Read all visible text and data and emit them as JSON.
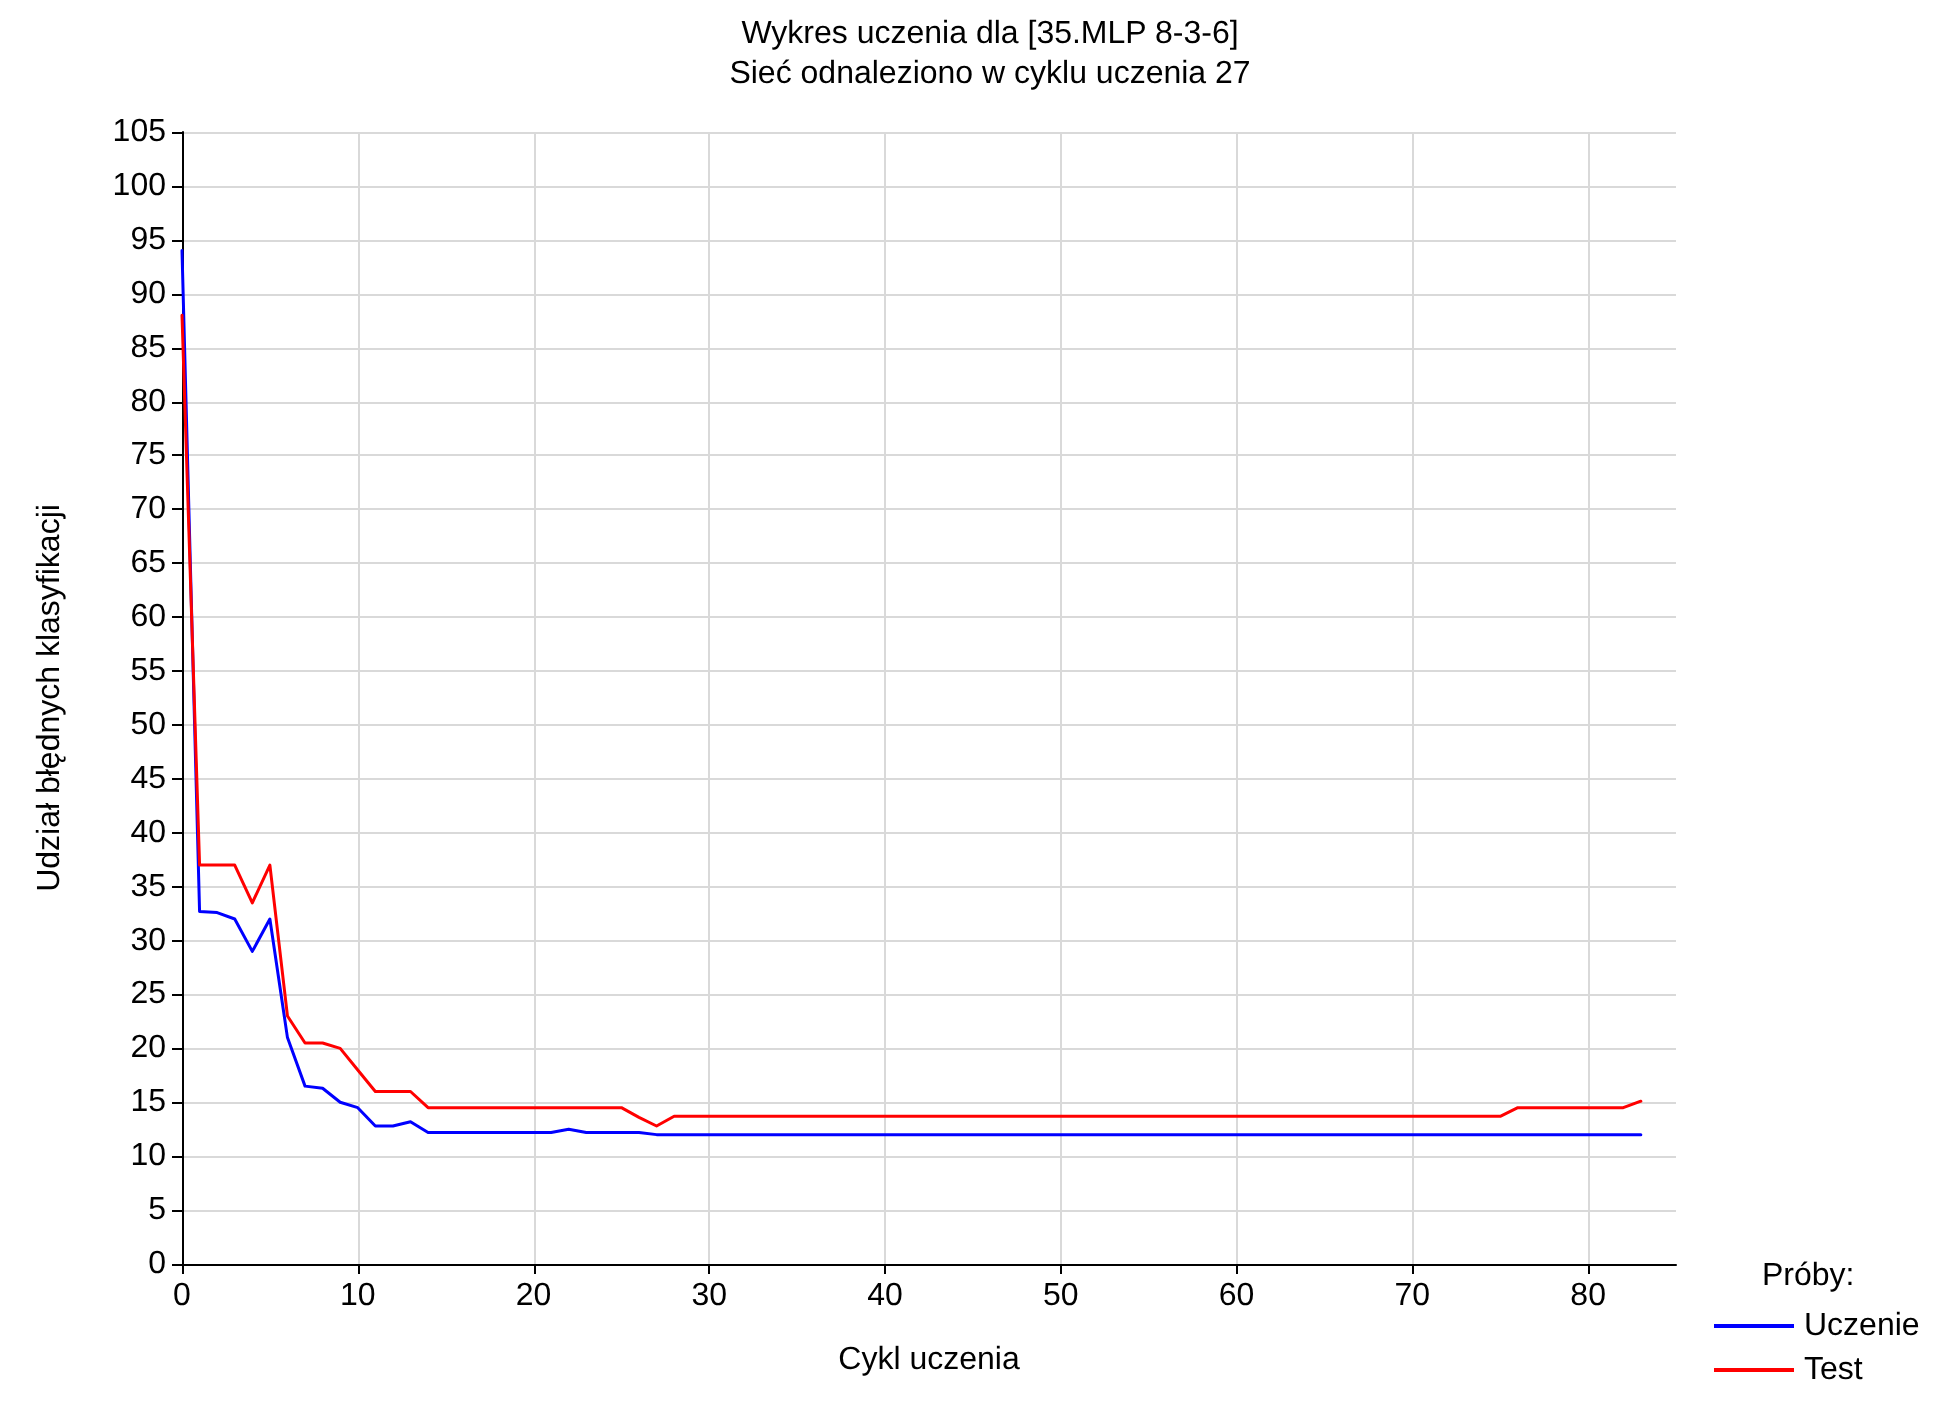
{
  "chart_data": {
    "type": "line",
    "title": "Wykres uczenia dla [35.MLP 8-3-6]",
    "subtitle": "Sieć odnaleziono w cyklu uczenia 27",
    "xlabel": "Cykl uczenia",
    "ylabel": "Udział błędnych klasyfikacji",
    "legend_title": "Próby:",
    "series": [
      {
        "name": "Uczenie",
        "color": "#0000ff",
        "x": [
          0,
          1,
          2,
          3,
          4,
          5,
          6,
          7,
          8,
          9,
          10,
          11,
          12,
          13,
          14,
          21,
          22,
          23,
          26,
          27,
          83
        ],
        "values": [
          94,
          32.7,
          32.6,
          32,
          29,
          32,
          21,
          16.5,
          16.3,
          15,
          14.5,
          12.8,
          12.8,
          13.2,
          12.2,
          12.2,
          12.5,
          12.2,
          12.2,
          12,
          12
        ]
      },
      {
        "name": "Test",
        "color": "#ff0000",
        "x": [
          0,
          1,
          3,
          4,
          5,
          6,
          7,
          8,
          9,
          10,
          11,
          13,
          14,
          25,
          26,
          27,
          28,
          75,
          76,
          82,
          83
        ],
        "values": [
          88,
          37,
          37,
          33.5,
          37,
          23,
          20.5,
          20.5,
          20,
          18,
          16,
          16,
          14.5,
          14.5,
          13.6,
          12.8,
          13.7,
          13.7,
          14.5,
          14.5,
          15.1
        ]
      }
    ],
    "xlim": [
      0,
      85
    ],
    "xticks": [
      0,
      10,
      20,
      30,
      40,
      50,
      60,
      70,
      80
    ],
    "ylim": [
      0,
      105
    ],
    "yticks": [
      0,
      5,
      10,
      15,
      20,
      25,
      30,
      35,
      40,
      45,
      50,
      55,
      60,
      65,
      70,
      75,
      80,
      85,
      90,
      95,
      100,
      105
    ],
    "grid": true,
    "legend": "bottom right",
    "marker": "none",
    "line_style": "solid"
  }
}
